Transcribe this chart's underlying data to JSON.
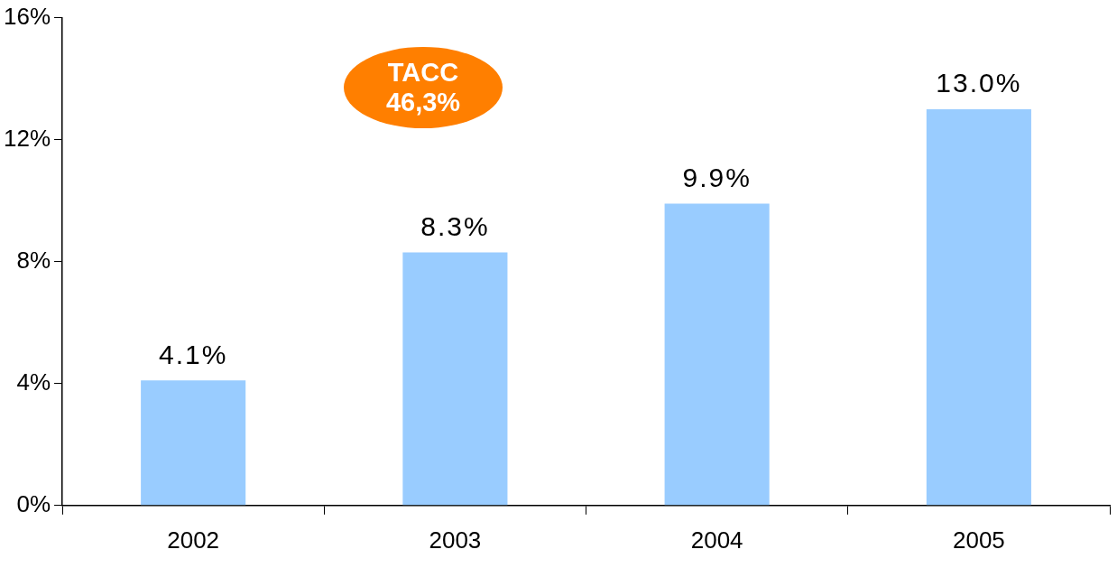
{
  "chart_data": {
    "type": "bar",
    "categories": [
      "2002",
      "2003",
      "2004",
      "2005"
    ],
    "values": [
      4.1,
      8.3,
      9.9,
      13.0
    ],
    "color": "#99ccff",
    "value_labels": [
      "4.1%",
      "8.3%",
      "9.9%",
      "13.0%"
    ],
    "ylim": [
      0,
      16
    ],
    "yticks": [
      {
        "value": 0,
        "label": "0%"
      },
      {
        "value": 4,
        "label": "4%"
      },
      {
        "value": 8,
        "label": "8%"
      },
      {
        "value": 12,
        "label": "12%"
      },
      {
        "value": 16,
        "label": "16%"
      }
    ],
    "grid": false,
    "legend": false,
    "annotations": [
      "TACC\n46,3%"
    ]
  }
}
